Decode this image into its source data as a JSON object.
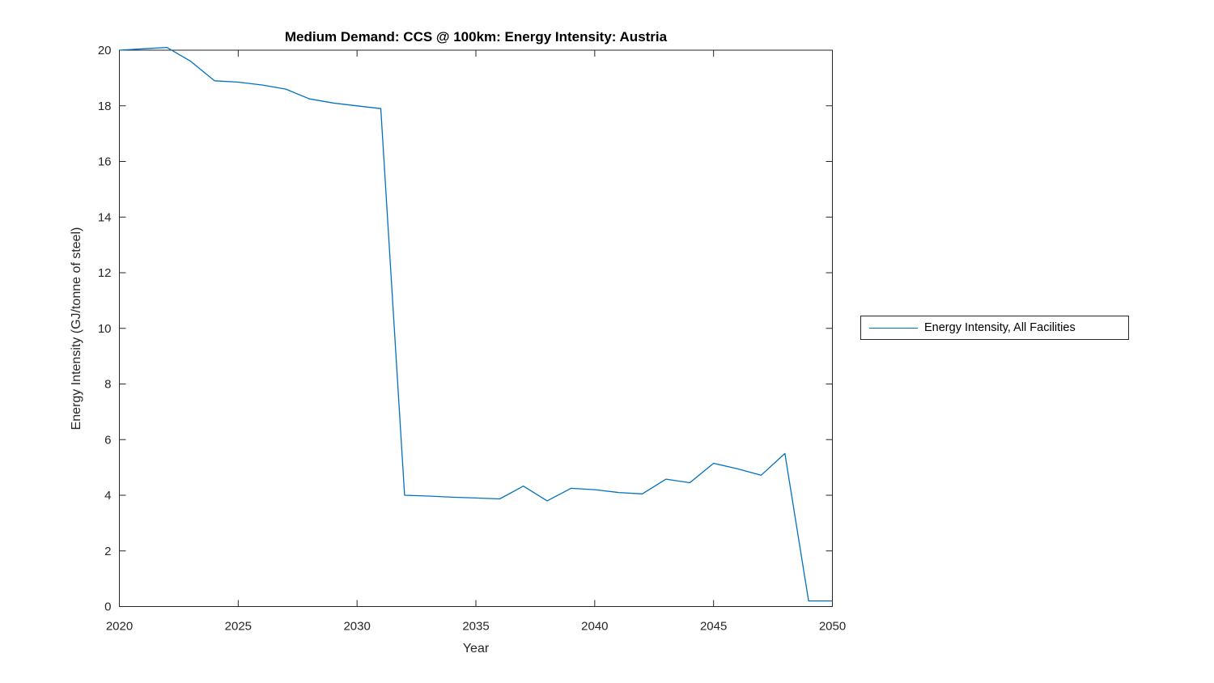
{
  "chart_data": {
    "type": "line",
    "title": "Medium Demand: CCS @ 100km: Energy Intensity: Austria",
    "xlabel": "Year",
    "ylabel": "Energy Intensity (GJ/tonne of steel)",
    "x": [
      2020,
      2021,
      2022,
      2023,
      2024,
      2025,
      2026,
      2027,
      2028,
      2029,
      2030,
      2031,
      2032,
      2033,
      2034,
      2035,
      2036,
      2037,
      2038,
      2039,
      2040,
      2041,
      2042,
      2043,
      2044,
      2045,
      2046,
      2047,
      2048,
      2049,
      2050
    ],
    "series": [
      {
        "name": "Energy Intensity, All Facilities",
        "color": "#0072BD",
        "values": [
          20.0,
          20.05,
          20.1,
          19.6,
          18.9,
          18.85,
          18.75,
          18.6,
          18.25,
          18.1,
          18.0,
          17.9,
          4.0,
          3.97,
          3.93,
          3.9,
          3.87,
          4.33,
          3.8,
          4.25,
          4.2,
          4.1,
          4.05,
          4.58,
          4.45,
          5.15,
          4.95,
          4.72,
          5.5,
          0.2,
          0.2
        ]
      }
    ],
    "xlim": [
      2020,
      2050
    ],
    "ylim": [
      0,
      20
    ],
    "xticks": [
      2020,
      2025,
      2030,
      2035,
      2040,
      2045,
      2050
    ],
    "yticks": [
      0,
      2,
      4,
      6,
      8,
      10,
      12,
      14,
      16,
      18,
      20
    ],
    "grid": false,
    "legend_position": "right-outside",
    "axis_color": "#262626",
    "background_color": "#ffffff"
  }
}
